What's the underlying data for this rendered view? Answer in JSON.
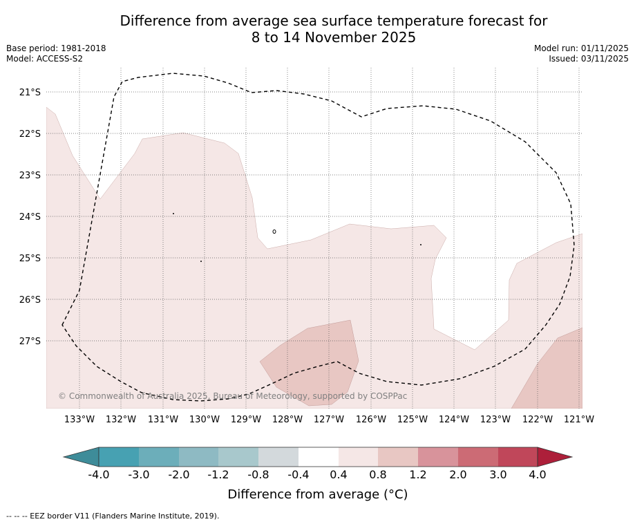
{
  "title": {
    "line1": "Difference from average sea surface temperature forecast for",
    "line2": "8 to 14 November 2025"
  },
  "meta": {
    "base_period": "Base period: 1981-2018",
    "model": "Model: ACCESS-S2",
    "model_run": "Model run: 01/11/2025",
    "issued": "Issued: 03/11/2025"
  },
  "map": {
    "lon_labels": [
      "133°W",
      "132°W",
      "131°W",
      "130°W",
      "129°W",
      "128°W",
      "127°W",
      "126°W",
      "125°W",
      "124°W",
      "123°W",
      "122°W",
      "121°W"
    ],
    "lat_labels": [
      "21°S",
      "22°S",
      "23°S",
      "24°S",
      "25°S",
      "26°S",
      "27°S"
    ],
    "copyright": "© Commonwealth of Australia 2025, Bureau of Meteorology, supported by COSPPac",
    "eez_style": "dashed",
    "anomaly_classes": {
      "0.4 to 0.8": "#f5e7e6",
      "0.8 to 1.2": "#e8c7c3"
    }
  },
  "colorbar": {
    "title": "Difference from average (°C)",
    "tick_labels": [
      "-4.0",
      "-3.0",
      "-2.0",
      "-1.2",
      "-0.8",
      "-0.4",
      "0.4",
      "0.8",
      "1.2",
      "2.0",
      "3.0",
      "4.0"
    ],
    "colors": [
      "#3e8c99",
      "#47a1b2",
      "#6caeba",
      "#8ebac3",
      "#a8c8cc",
      "#d3d9dc",
      "#ffffff",
      "#f5e7e6",
      "#e8c7c3",
      "#d8939b",
      "#cc6b75",
      "#c0475a",
      "#ad1f3a"
    ]
  },
  "footer": "--  --  -- EEZ border V11 (Flanders Marine Institute, 2019)."
}
